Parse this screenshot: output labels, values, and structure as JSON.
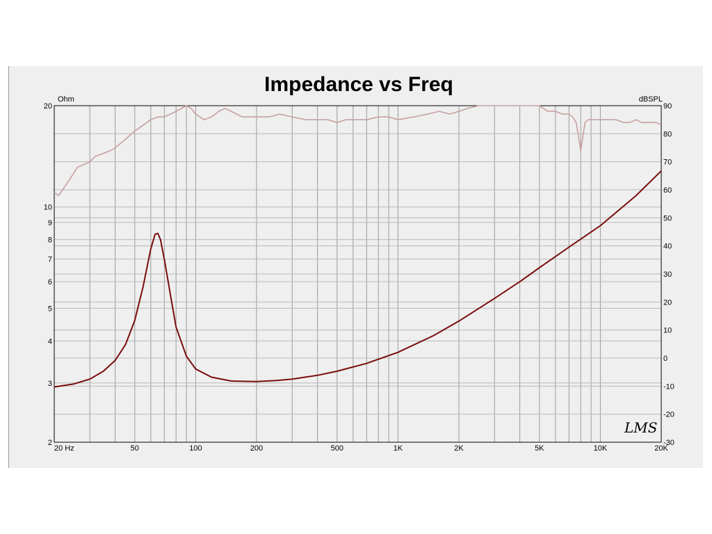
{
  "chart_data": {
    "type": "line",
    "title": "Impedance vs Freq",
    "logo": "LMS",
    "x_axis": {
      "scale": "log",
      "range": [
        20,
        20000
      ],
      "ticks": [
        {
          "value": 20,
          "label": "20  Hz"
        },
        {
          "value": 50,
          "label": "50"
        },
        {
          "value": 100,
          "label": "100"
        },
        {
          "value": 200,
          "label": "200"
        },
        {
          "value": 500,
          "label": "500"
        },
        {
          "value": 1000,
          "label": "1K"
        },
        {
          "value": 2000,
          "label": "2K"
        },
        {
          "value": 5000,
          "label": "5K"
        },
        {
          "value": 10000,
          "label": "10K"
        },
        {
          "value": 20000,
          "label": "20K"
        }
      ]
    },
    "y_left": {
      "unit": "Ohm",
      "scale": "log",
      "range": [
        2,
        20
      ],
      "ticks": [
        {
          "value": 20,
          "label": "20"
        },
        {
          "value": 10,
          "label": "10"
        },
        {
          "value": 9,
          "label": "9"
        },
        {
          "value": 8,
          "label": "8"
        },
        {
          "value": 7,
          "label": "7"
        },
        {
          "value": 6,
          "label": "6"
        },
        {
          "value": 5,
          "label": "5"
        },
        {
          "value": 4,
          "label": "4"
        },
        {
          "value": 3,
          "label": "3"
        },
        {
          "value": 2,
          "label": "2"
        }
      ]
    },
    "y_right": {
      "unit": "dBSPL",
      "scale": "linear",
      "range": [
        -30,
        90
      ],
      "ticks": [
        {
          "value": 90,
          "label": "90"
        },
        {
          "value": 80,
          "label": "80"
        },
        {
          "value": 70,
          "label": "70"
        },
        {
          "value": 60,
          "label": "60"
        },
        {
          "value": 50,
          "label": "50"
        },
        {
          "value": 40,
          "label": "40"
        },
        {
          "value": 30,
          "label": "30"
        },
        {
          "value": 20,
          "label": "20"
        },
        {
          "value": 10,
          "label": "10"
        },
        {
          "value": 0,
          "label": "0"
        },
        {
          "value": -10,
          "label": "-10"
        },
        {
          "value": -20,
          "label": "-20"
        },
        {
          "value": -30,
          "label": "-30"
        }
      ]
    },
    "grid": true,
    "series": [
      {
        "axis": "left",
        "color": "#7a0c0c",
        "x": [
          20,
          25,
          30,
          35,
          40,
          45,
          50,
          55,
          60,
          63,
          65,
          67,
          70,
          75,
          80,
          90,
          100,
          120,
          150,
          200,
          250,
          300,
          400,
          500,
          700,
          1000,
          1500,
          2000,
          3000,
          4000,
          5000,
          7000,
          10000,
          15000,
          20000
        ],
        "y": [
          2.92,
          2.98,
          3.08,
          3.25,
          3.5,
          3.9,
          4.6,
          5.8,
          7.5,
          8.3,
          8.35,
          8.0,
          7.0,
          5.5,
          4.4,
          3.6,
          3.3,
          3.12,
          3.04,
          3.03,
          3.05,
          3.08,
          3.16,
          3.25,
          3.43,
          3.7,
          4.15,
          4.58,
          5.35,
          6.0,
          6.6,
          7.6,
          8.8,
          10.8,
          12.8
        ]
      },
      {
        "axis": "right",
        "color": "#c8a0a0",
        "x": [
          20,
          21,
          22,
          24,
          26,
          28,
          30,
          32,
          35,
          38,
          40,
          45,
          50,
          55,
          60,
          65,
          70,
          75,
          80,
          85,
          90,
          95,
          100,
          110,
          120,
          130,
          140,
          150,
          170,
          200,
          230,
          260,
          300,
          350,
          400,
          450,
          500,
          550,
          600,
          700,
          800,
          900,
          1000,
          1200,
          1400,
          1600,
          1800,
          2000,
          2200,
          2500,
          3000,
          3500,
          4000,
          4500,
          5000,
          5500,
          6000,
          6500,
          7000,
          7300,
          7600,
          7800,
          8000,
          8200,
          8400,
          8700,
          9000,
          10000,
          11000,
          12000,
          13000,
          14000,
          15000,
          16000,
          17000,
          18000,
          19000,
          20000
        ],
        "y": [
          59,
          58,
          60,
          64,
          68,
          69,
          70,
          72,
          73,
          74,
          75,
          78,
          81,
          83,
          85,
          86,
          86,
          87,
          88,
          89,
          90,
          89,
          87,
          85,
          86,
          88,
          89,
          88,
          86,
          86,
          86,
          87,
          86,
          85,
          85,
          85,
          84,
          85,
          85,
          85,
          86,
          86,
          85,
          86,
          87,
          88,
          87,
          88,
          89,
          90,
          91,
          91,
          90,
          90,
          90,
          88,
          88,
          87,
          87,
          86,
          84,
          79,
          74,
          79,
          84,
          85,
          85,
          85,
          85,
          85,
          84,
          84,
          85,
          84,
          84,
          84,
          84,
          83
        ]
      }
    ]
  }
}
